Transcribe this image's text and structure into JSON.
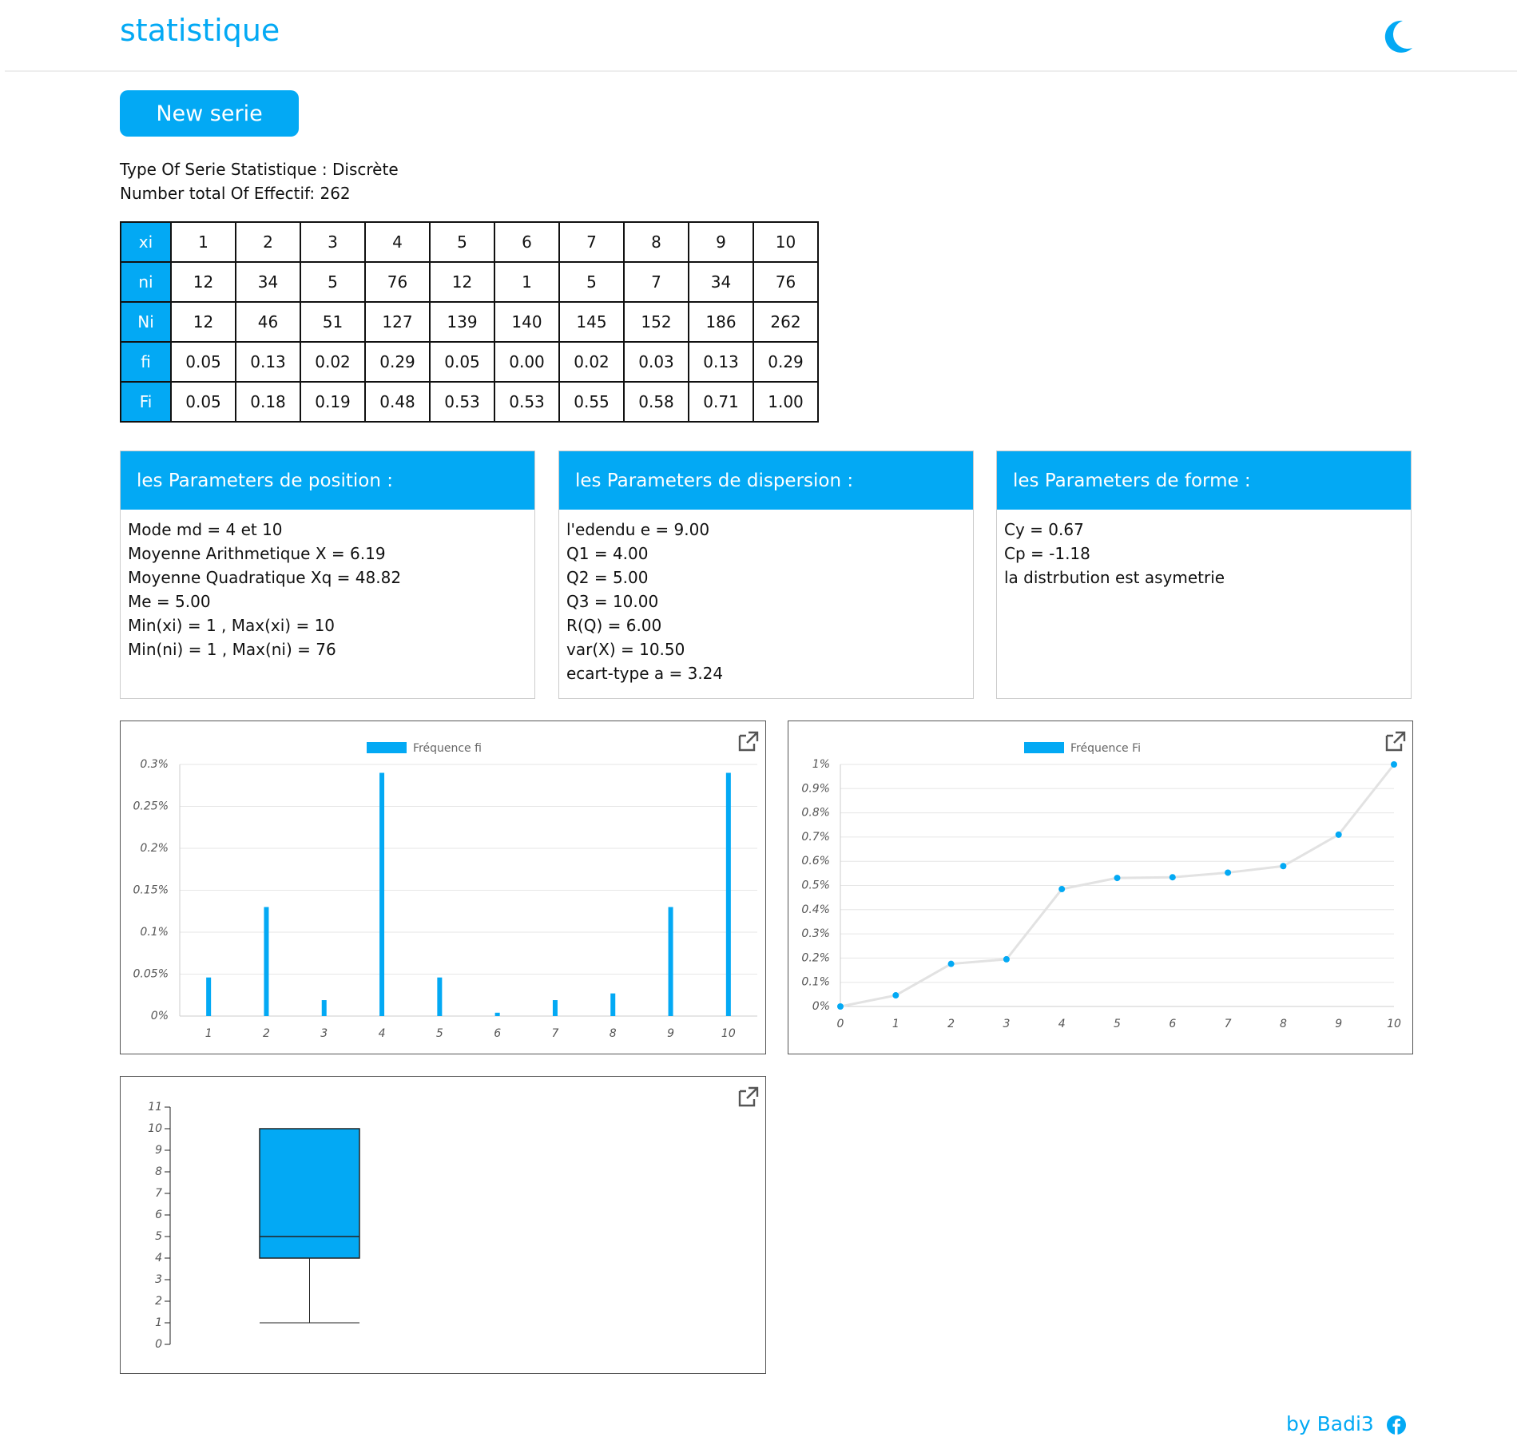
{
  "header": {
    "title": "statistique"
  },
  "button": "New serie",
  "info": [
    "Type Of Serie Statistique : Discrète",
    "Number total Of Effectif: 262"
  ],
  "table": {
    "rows": [
      [
        "xi",
        "1",
        "2",
        "3",
        "4",
        "5",
        "6",
        "7",
        "8",
        "9",
        "10"
      ],
      [
        "ni",
        "12",
        "34",
        "5",
        "76",
        "12",
        "1",
        "5",
        "7",
        "34",
        "76"
      ],
      [
        "Ni",
        "12",
        "46",
        "51",
        "127",
        "139",
        "140",
        "145",
        "152",
        "186",
        "262"
      ],
      [
        "fi",
        "0.05",
        "0.13",
        "0.02",
        "0.29",
        "0.05",
        "0.00",
        "0.02",
        "0.03",
        "0.13",
        "0.29"
      ],
      [
        "Fi",
        "0.05",
        "0.18",
        "0.19",
        "0.48",
        "0.53",
        "0.53",
        "0.55",
        "0.58",
        "0.71",
        "1.00"
      ]
    ]
  },
  "panels": [
    {
      "title": "les Parameters de position :",
      "lines": [
        "Mode md = 4 et 10",
        "Moyenne Arithmetique X = 6.19",
        "Moyenne Quadratique Xq = 48.82",
        "Me = 5.00",
        "Min(xi) = 1 , Max(xi) = 10",
        "Min(ni) = 1 , Max(ni) = 76"
      ]
    },
    {
      "title": "les Parameters de dispersion :",
      "lines": [
        "l'edendu e = 9.00",
        "Q1 = 4.00",
        "Q2 = 5.00",
        "Q3 = 10.00",
        "R(Q) = 6.00",
        "var(X) = 10.50",
        "ecart-type a = 3.24"
      ]
    },
    {
      "title": "les Parameters de forme :",
      "lines": [
        "Cy = 0.67",
        "Cp = -1.18",
        "la distrbution est asymetrie"
      ]
    }
  ],
  "chart_data": [
    {
      "type": "bar",
      "categories": [
        "1",
        "2",
        "3",
        "4",
        "5",
        "6",
        "7",
        "8",
        "9",
        "10"
      ],
      "series": [
        {
          "name": "Fréquence fi",
          "color": "#03a9f4",
          "values": [
            0.046,
            0.13,
            0.019,
            0.29,
            0.046,
            0.004,
            0.019,
            0.027,
            0.13,
            0.29
          ]
        }
      ],
      "ylim": [
        0,
        0.3
      ],
      "yticks": [
        {
          "value": 0,
          "label": "0%"
        },
        {
          "value": 0.05,
          "label": "0.05%"
        },
        {
          "value": 0.1,
          "label": "0.1%"
        },
        {
          "value": 0.15,
          "label": "0.15%"
        },
        {
          "value": 0.2,
          "label": "0.2%"
        },
        {
          "value": 0.25,
          "label": "0.25%"
        },
        {
          "value": 0.3,
          "label": "0.3%"
        }
      ],
      "grid": true
    },
    {
      "type": "line",
      "x": [
        0,
        1,
        2,
        3,
        4,
        5,
        6,
        7,
        8,
        9,
        10
      ],
      "series": [
        {
          "name": "Fréquence Fi",
          "color": "#03a9f4",
          "line_color": "#e2e2e2",
          "values": [
            0,
            0.046,
            0.176,
            0.195,
            0.485,
            0.531,
            0.534,
            0.553,
            0.58,
            0.71,
            1
          ]
        }
      ],
      "xlim": [
        0,
        10
      ],
      "xticks": [
        0,
        1,
        2,
        3,
        4,
        5,
        6,
        7,
        8,
        9,
        10
      ],
      "ylim": [
        0,
        1
      ],
      "yticks": [
        {
          "value": 0,
          "label": "0%"
        },
        {
          "value": 0.1,
          "label": "0.1%"
        },
        {
          "value": 0.2,
          "label": "0.2%"
        },
        {
          "value": 0.3,
          "label": "0.3%"
        },
        {
          "value": 0.4,
          "label": "0.4%"
        },
        {
          "value": 0.5,
          "label": "0.5%"
        },
        {
          "value": 0.6,
          "label": "0.6%"
        },
        {
          "value": 0.7,
          "label": "0.7%"
        },
        {
          "value": 0.8,
          "label": "0.8%"
        },
        {
          "value": 0.9,
          "label": "0.9%"
        },
        {
          "value": 1,
          "label": "1%"
        }
      ],
      "grid": true
    },
    {
      "type": "box",
      "min": 1,
      "q1": 4,
      "median": 5,
      "q3": 10,
      "max": 10,
      "color": "#03a9f4",
      "ylim": [
        0,
        11
      ],
      "yticks": [
        0,
        1,
        2,
        3,
        4,
        5,
        6,
        7,
        8,
        9,
        10,
        11
      ],
      "grid": false
    }
  ],
  "footer": "by Badi3"
}
